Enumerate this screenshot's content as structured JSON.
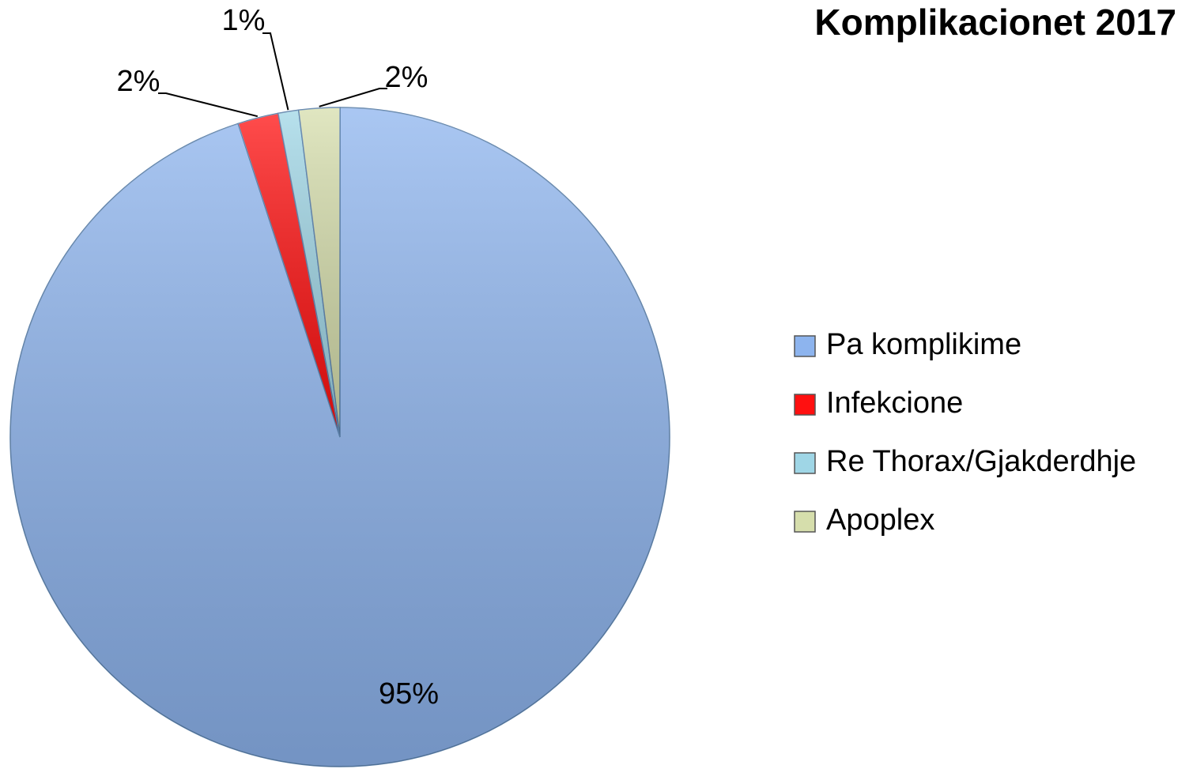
{
  "chart_data": {
    "type": "pie",
    "title": "Komplikacionet 2017",
    "categories": [
      "Pa komplikime",
      "Infekcione",
      "Re Thorax/Gjakderdhje",
      "Apoplex"
    ],
    "values": [
      95,
      2,
      1,
      2
    ],
    "value_labels": [
      "95%",
      "2%",
      "1%",
      "2%"
    ],
    "colors": [
      "#8db4ee",
      "#ff1010",
      "#9fd6e6",
      "#d6deac"
    ],
    "legend": "right"
  }
}
